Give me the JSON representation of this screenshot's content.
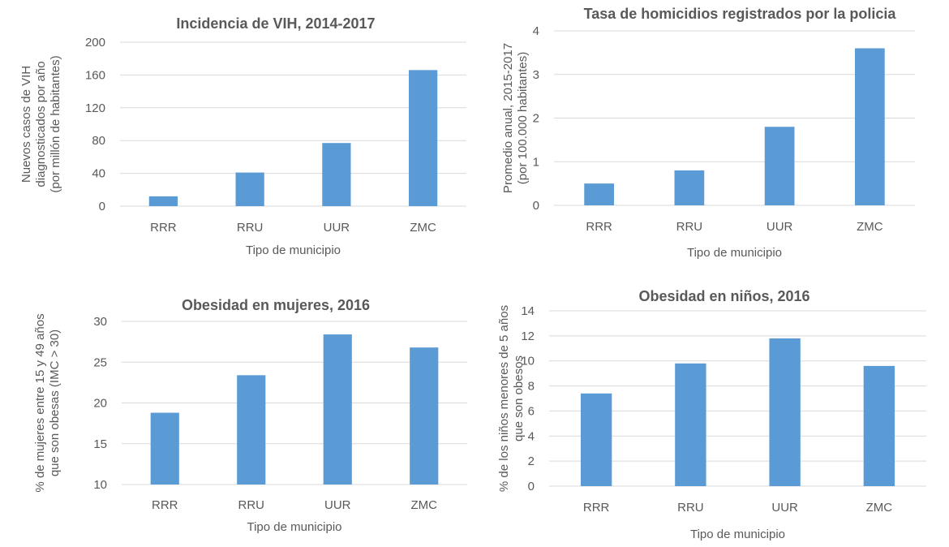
{
  "colors": {
    "bar": "#5b9bd5",
    "grid": "#d9d9d9",
    "text": "#595959"
  },
  "chart_data": [
    {
      "type": "bar",
      "title": "Incidencia de VIH, 2014-2017",
      "categories": [
        "RRR",
        "RRU",
        "UUR",
        "ZMC"
      ],
      "values": [
        12,
        41,
        77,
        166
      ],
      "xlabel": "Tipo de municipio",
      "ylabel_lines": [
        "Nuevos casos de VIH",
        "diagnosticados por año",
        "(por millón de habitantes)"
      ],
      "ylim": [
        0,
        200
      ],
      "yticks": [
        0,
        40,
        80,
        120,
        160,
        200
      ],
      "grid": true,
      "legend": "none"
    },
    {
      "type": "bar",
      "title": "Tasa de homicidios registrados por la policia",
      "categories": [
        "RRR",
        "RRU",
        "UUR",
        "ZMC"
      ],
      "values": [
        0.5,
        0.8,
        1.8,
        3.6
      ],
      "xlabel": "Tipo de municipio",
      "ylabel_lines": [
        "Promedio anual, 2015-2017",
        "(por 100.000 habitantes)"
      ],
      "ylim": [
        0,
        4
      ],
      "yticks": [
        0,
        1,
        2,
        3,
        4
      ],
      "grid": true,
      "legend": "none"
    },
    {
      "type": "bar",
      "title": "Obesidad en mujeres, 2016",
      "categories": [
        "RRR",
        "RRU",
        "UUR",
        "ZMC"
      ],
      "values": [
        18.8,
        23.4,
        28.4,
        26.8
      ],
      "xlabel": "Tipo de municipio",
      "ylabel_lines": [
        "% de mujeres entre 15 y 49 años",
        "que son obesas (IMC > 30)"
      ],
      "ylim": [
        10,
        30
      ],
      "yticks": [
        10,
        15,
        20,
        25,
        30
      ],
      "grid": true,
      "legend": "none"
    },
    {
      "type": "bar",
      "title": "Obesidad en niños, 2016",
      "categories": [
        "RRR",
        "RRU",
        "UUR",
        "ZMC"
      ],
      "values": [
        7.4,
        9.8,
        11.8,
        9.6
      ],
      "xlabel": "Tipo de municipio",
      "ylabel_lines": [
        "% de los niños menores de 5 años",
        "que son obesos"
      ],
      "ylim": [
        0,
        14
      ],
      "yticks": [
        0,
        2,
        4,
        6,
        8,
        10,
        12,
        14
      ],
      "grid": true,
      "legend": "none"
    }
  ]
}
